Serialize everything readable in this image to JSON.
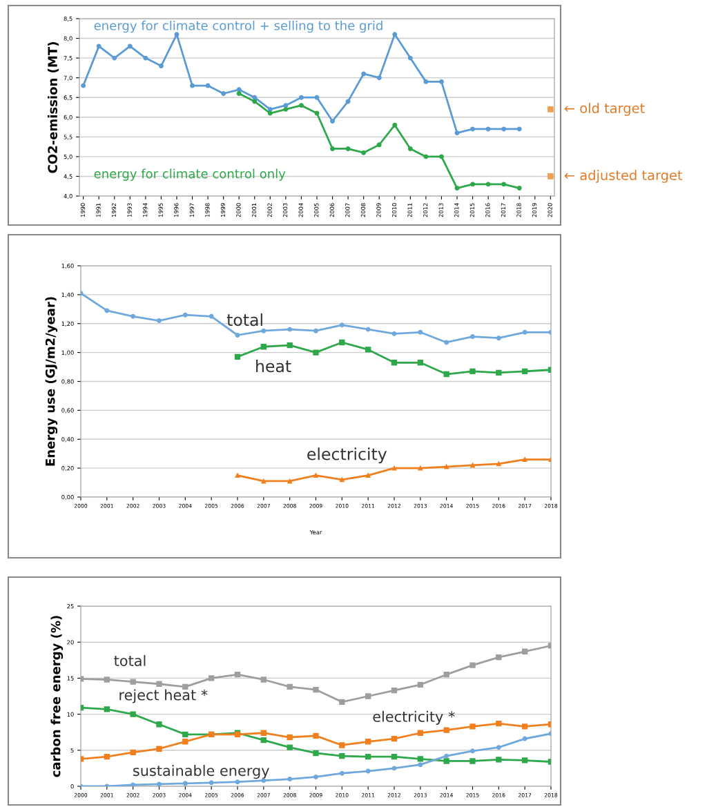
{
  "chart_data": [
    {
      "type": "line",
      "ylabel": "CO2-emission (MT)",
      "categories": [
        "1990",
        "1991",
        "1992",
        "1993",
        "1994",
        "1995",
        "1996",
        "1997",
        "1998",
        "1999",
        "2000",
        "2001",
        "2002",
        "2003",
        "2004",
        "2005",
        "2006",
        "2007",
        "2008",
        "2009",
        "2010",
        "2011",
        "2012",
        "2013",
        "2014",
        "2015",
        "2016",
        "2017",
        "2018",
        "2019",
        "2020"
      ],
      "series": [
        {
          "name": "energy for climate control + selling to the grid",
          "color": "#5b9bd5",
          "marker": "circle",
          "values": [
            6.8,
            7.8,
            7.5,
            7.8,
            7.5,
            7.3,
            8.1,
            6.8,
            6.8,
            6.6,
            6.7,
            6.5,
            6.2,
            6.3,
            6.5,
            6.5,
            5.9,
            6.4,
            7.1,
            7.0,
            8.1,
            7.5,
            6.9,
            6.9,
            5.6,
            5.7,
            5.7,
            5.7,
            5.7,
            null,
            null
          ]
        },
        {
          "name": "energy for climate control only",
          "color": "#2ea84a",
          "marker": "circle",
          "values": [
            null,
            null,
            null,
            null,
            null,
            null,
            null,
            null,
            null,
            null,
            6.6,
            6.4,
            6.1,
            6.2,
            6.3,
            6.1,
            5.2,
            5.2,
            5.1,
            5.3,
            5.8,
            5.2,
            5.0,
            5.0,
            4.2,
            4.3,
            4.3,
            4.3,
            4.2,
            null,
            null
          ]
        },
        {
          "type": "scatter",
          "color": "#f0a050",
          "marker": "square",
          "values": [
            null,
            null,
            null,
            null,
            null,
            null,
            null,
            null,
            null,
            null,
            null,
            null,
            null,
            null,
            null,
            null,
            null,
            null,
            null,
            null,
            null,
            null,
            null,
            null,
            null,
            null,
            null,
            null,
            null,
            null,
            6.2
          ]
        },
        {
          "type": "scatter",
          "color": "#f0a050",
          "marker": "square",
          "values": [
            null,
            null,
            null,
            null,
            null,
            null,
            null,
            null,
            null,
            null,
            null,
            null,
            null,
            null,
            null,
            null,
            null,
            null,
            null,
            null,
            null,
            null,
            null,
            null,
            null,
            null,
            null,
            null,
            null,
            null,
            4.5
          ]
        }
      ],
      "annotations": [
        {
          "text": "← old target",
          "x": "2020",
          "y": 6.2
        },
        {
          "text": "← adjusted target",
          "x": "2020",
          "y": 4.5
        }
      ],
      "ylim": [
        4.0,
        8.5
      ],
      "yticks": [
        {
          "value": 4.0,
          "label": "4,0"
        },
        {
          "value": 4.5,
          "label": "4,5"
        },
        {
          "value": 5.0,
          "label": "5,0"
        },
        {
          "value": 5.5,
          "label": "5,5"
        },
        {
          "value": 6.0,
          "label": "6,0"
        },
        {
          "value": 6.5,
          "label": "6,5"
        },
        {
          "value": 7.0,
          "label": "7,0"
        },
        {
          "value": 7.5,
          "label": "7,5"
        },
        {
          "value": 8.0,
          "label": "8,0"
        },
        {
          "value": 8.5,
          "label": "8,5"
        }
      ],
      "grid": "y",
      "legend": false
    },
    {
      "type": "line",
      "ylabel": "Energy use (GJ/m2/year)",
      "xlabel": "Year",
      "categories": [
        "2000",
        "2001",
        "2002",
        "2003",
        "2004",
        "2005",
        "2006",
        "2007",
        "2008",
        "2009",
        "2010",
        "2011",
        "2012",
        "2013",
        "2014",
        "2015",
        "2016",
        "2017",
        "2018"
      ],
      "series": [
        {
          "name": "total",
          "color": "#6fa8dc",
          "marker": "circle",
          "values": [
            1.41,
            1.29,
            1.25,
            1.22,
            1.26,
            1.25,
            1.12,
            1.15,
            1.16,
            1.15,
            1.19,
            1.16,
            1.13,
            1.14,
            1.07,
            1.11,
            1.1,
            1.14,
            1.14
          ]
        },
        {
          "name": "heat",
          "color": "#2ea84a",
          "marker": "square",
          "values": [
            null,
            null,
            null,
            null,
            null,
            null,
            0.97,
            1.04,
            1.05,
            1.0,
            1.07,
            1.02,
            0.93,
            0.93,
            0.85,
            0.87,
            0.86,
            0.87,
            0.88
          ]
        },
        {
          "name": "electricity",
          "color": "#f07f1e",
          "marker": "triangle",
          "values": [
            null,
            null,
            null,
            null,
            null,
            null,
            0.15,
            0.11,
            0.11,
            0.15,
            0.12,
            0.15,
            0.2,
            0.2,
            0.21,
            0.22,
            0.23,
            0.26,
            0.26
          ]
        }
      ],
      "ylim": [
        0.0,
        1.6
      ],
      "yticks": [
        {
          "value": 0.0,
          "label": "0,00"
        },
        {
          "value": 0.2,
          "label": "0,20"
        },
        {
          "value": 0.4,
          "label": "0,40"
        },
        {
          "value": 0.6,
          "label": "0,60"
        },
        {
          "value": 0.8,
          "label": "0,80"
        },
        {
          "value": 1.0,
          "label": "1,00"
        },
        {
          "value": 1.2,
          "label": "1,20"
        },
        {
          "value": 1.4,
          "label": "1,40"
        },
        {
          "value": 1.6,
          "label": "1,60"
        }
      ],
      "grid": "y",
      "legend": false
    },
    {
      "type": "line",
      "ylabel": "carbon free energy (%)",
      "categories": [
        "2000",
        "2001",
        "2002",
        "2003",
        "2004",
        "2005",
        "2006",
        "2007",
        "2008",
        "2009",
        "2010",
        "2011",
        "2012",
        "2013",
        "2014",
        "2015",
        "2016",
        "2017",
        "2018"
      ],
      "series": [
        {
          "name": "total",
          "color": "#9e9e9e",
          "marker": "square",
          "values": [
            14.9,
            14.8,
            14.5,
            14.2,
            13.8,
            15.0,
            15.5,
            14.8,
            13.8,
            13.4,
            11.7,
            12.5,
            13.3,
            14.1,
            15.5,
            16.8,
            17.9,
            18.7,
            19.5
          ]
        },
        {
          "name": "reject heat *",
          "color": "#2ea84a",
          "marker": "square",
          "values": [
            10.9,
            10.7,
            10.0,
            8.6,
            7.2,
            7.2,
            7.4,
            6.4,
            5.4,
            4.6,
            4.2,
            4.1,
            4.1,
            3.8,
            3.5,
            3.5,
            3.7,
            3.6,
            3.4
          ]
        },
        {
          "name": "electricity *",
          "color": "#f07f1e",
          "marker": "square",
          "values": [
            3.8,
            4.1,
            4.7,
            5.2,
            6.2,
            7.2,
            7.2,
            7.4,
            6.8,
            7.0,
            5.7,
            6.2,
            6.6,
            7.4,
            7.8,
            8.3,
            8.7,
            8.3,
            8.6
          ]
        },
        {
          "name": "sustainable energy",
          "color": "#6fa8dc",
          "marker": "circle",
          "values": [
            0.0,
            0.0,
            0.2,
            0.3,
            0.4,
            0.5,
            0.6,
            0.8,
            1.0,
            1.3,
            1.8,
            2.1,
            2.5,
            3.0,
            4.2,
            4.9,
            5.4,
            6.6,
            7.3
          ]
        }
      ],
      "ylim": [
        0,
        25
      ],
      "yticks": [
        0,
        5,
        10,
        15,
        20,
        25
      ],
      "grid": "y",
      "legend": false
    }
  ]
}
